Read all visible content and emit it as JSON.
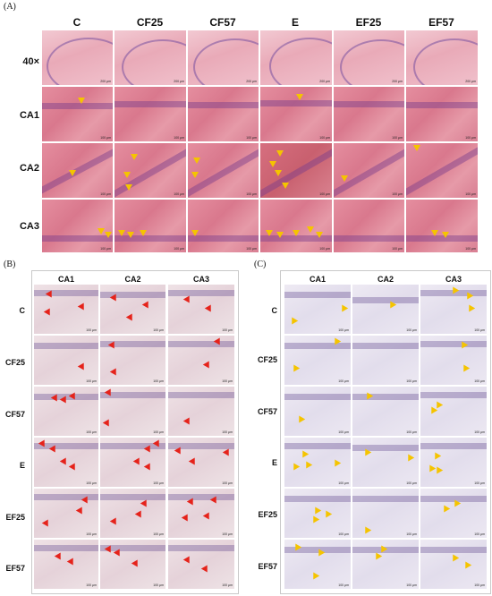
{
  "panel_a": {
    "letter": "(A)",
    "columns": [
      "C",
      "CF25",
      "CF57",
      "E",
      "EF25",
      "EF57"
    ],
    "rows": [
      "40×",
      "CA1",
      "CA2",
      "CA3"
    ],
    "scale_top": "200 μm",
    "scale_rest": "100 μm"
  },
  "panel_b": {
    "letter": "(B)",
    "columns": [
      "CA1",
      "CA2",
      "CA3"
    ],
    "rows": [
      "C",
      "CF25",
      "CF57",
      "E",
      "EF25",
      "EF57"
    ],
    "scale": "100 μm"
  },
  "panel_c": {
    "letter": "(C)",
    "columns": [
      "CA1",
      "CA2",
      "CA3"
    ],
    "rows": [
      "C",
      "CF25",
      "CF57",
      "E",
      "EF25",
      "EF57"
    ],
    "scale": "100 μm"
  },
  "colors": {
    "yellow_arrow": "#f5c400",
    "red_arrow": "#e5231b"
  }
}
